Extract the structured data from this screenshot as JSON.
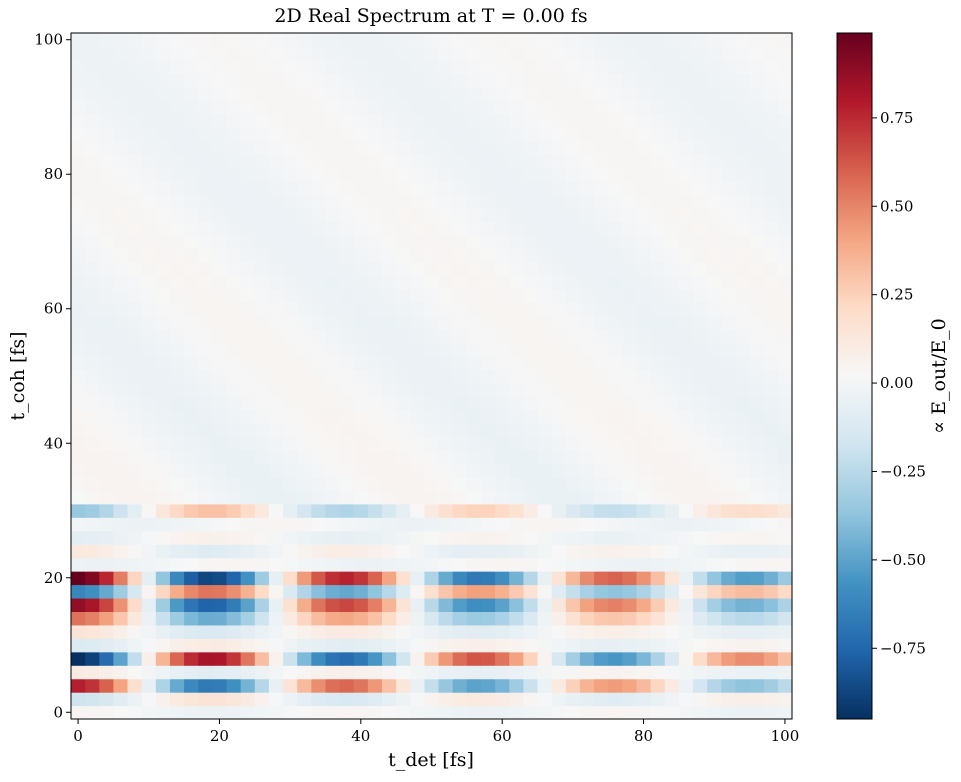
{
  "chart_data": {
    "type": "heatmap",
    "title": "2D Real Spectrum at T = 0.00 fs",
    "xlabel": "t_det [fs]",
    "ylabel": "t_coh [fs]",
    "xlim": [
      -1,
      101
    ],
    "ylim": [
      -1,
      101
    ],
    "x_ticks": [
      0,
      20,
      40,
      60,
      80,
      100
    ],
    "y_ticks": [
      0,
      20,
      40,
      60,
      80,
      100
    ],
    "grid": false,
    "colormap": "RdBu_r",
    "colorbar": {
      "label": "∝ E_out/E_0",
      "vmin": -0.95,
      "vmax": 0.99,
      "ticks": [
        -0.75,
        -0.5,
        -0.25,
        0.0,
        0.25,
        0.5,
        0.75
      ],
      "tick_labels": [
        "−0.75",
        "−0.50",
        "−0.25",
        "0.00",
        "0.25",
        "0.50",
        "0.75"
      ]
    },
    "grid_spacing_fs": 2,
    "num_cells": 51,
    "rows": [
      {
        "t_coh": 20,
        "peak_at_t_det_0": 0.99,
        "period_fs": 38,
        "decay_fs": 150
      },
      {
        "t_coh": 18,
        "peak_at_t_det_0": -0.62,
        "period_fs": 38,
        "decay_fs": 150
      },
      {
        "t_coh": 16,
        "peak_at_t_det_0": 0.88,
        "period_fs": 38,
        "decay_fs": 140
      },
      {
        "t_coh": 14,
        "peak_at_t_det_0": 0.55,
        "period_fs": 38,
        "decay_fs": 120
      },
      {
        "t_coh": 12,
        "peak_at_t_det_0": 0.15,
        "period_fs": 38,
        "decay_fs": 120
      },
      {
        "t_coh": 10,
        "peak_at_t_det_0": -0.12,
        "period_fs": 38,
        "decay_fs": 120
      },
      {
        "t_coh": 8,
        "peak_at_t_det_0": -0.95,
        "period_fs": 38,
        "decay_fs": 140
      },
      {
        "t_coh": 6,
        "peak_at_t_det_0": 0.1,
        "period_fs": 38,
        "decay_fs": 120
      },
      {
        "t_coh": 4,
        "peak_at_t_det_0": 0.78,
        "period_fs": 38,
        "decay_fs": 130
      },
      {
        "t_coh": 2,
        "peak_at_t_det_0": -0.18,
        "period_fs": 38,
        "decay_fs": 120
      },
      {
        "t_coh": 24,
        "peak_at_t_det_0": 0.12,
        "period_fs": 38,
        "decay_fs": 140
      },
      {
        "t_coh": 26,
        "peak_at_t_det_0": -0.08,
        "period_fs": 38,
        "decay_fs": 140
      },
      {
        "t_coh": 30,
        "peak_at_t_det_0": -0.35,
        "period_fs": 38,
        "decay_fs": 160
      }
    ],
    "upper_region": {
      "t_coh_from": 32,
      "amplitude": 0.06,
      "note": "weak diagonal stripes"
    }
  }
}
